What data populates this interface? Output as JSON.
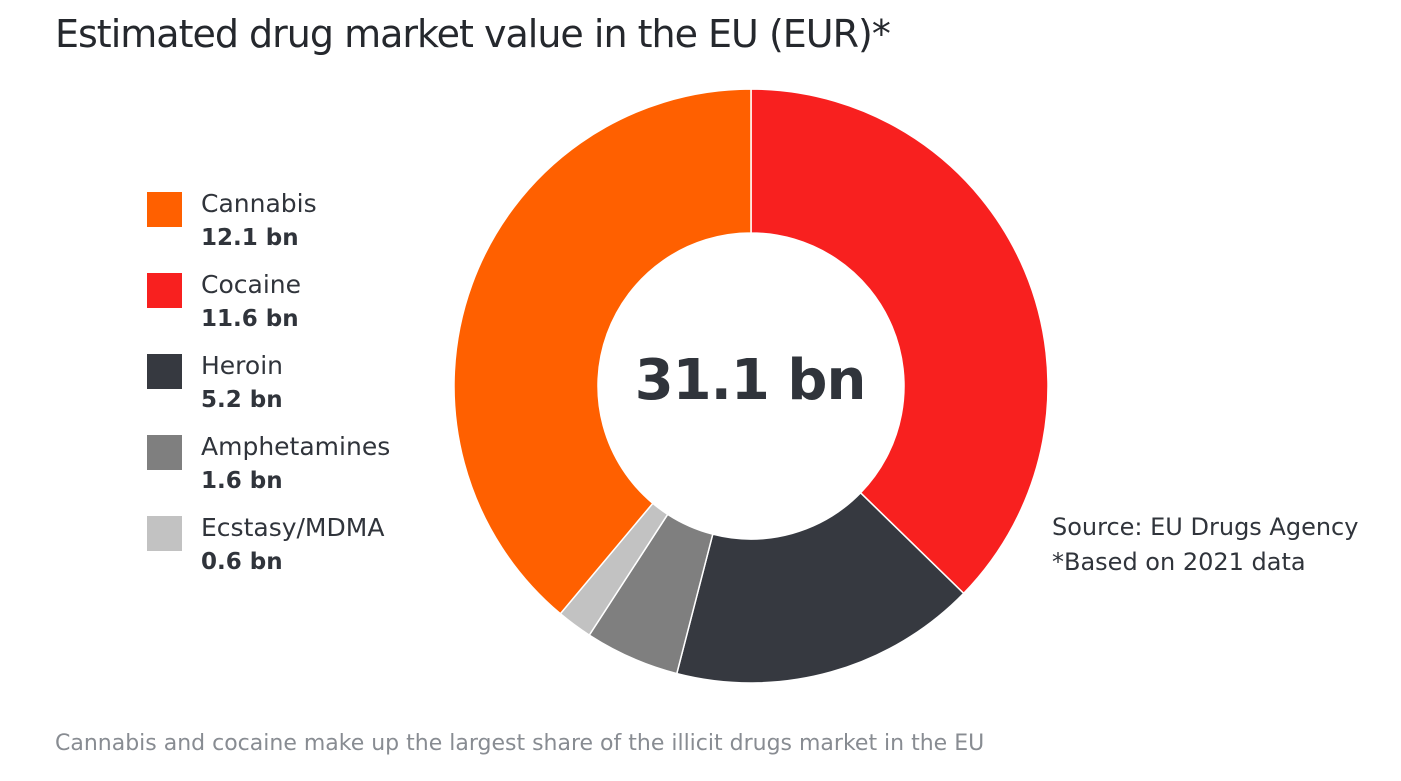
{
  "chart_data": {
    "type": "pie",
    "title": "Estimated drug market value in the EU (EUR)*",
    "center_label": "31.1 bn",
    "unit": "bn",
    "categories": [
      "Cannabis",
      "Cocaine",
      "Heroin",
      "Amphetamines",
      "Ecstasy/MDMA"
    ],
    "values": [
      12.1,
      11.6,
      5.2,
      1.6,
      0.6
    ],
    "value_labels": [
      "12.1 bn",
      "11.6 bn",
      "5.2 bn",
      "1.6 bn",
      "0.6 bn"
    ],
    "colors": [
      "#ff6000",
      "#f8201f",
      "#363940",
      "#7f7f7f",
      "#c2c2c2"
    ],
    "donut": true,
    "legend_position": "left"
  },
  "source": {
    "line1": "Source: EU Drugs Agency",
    "line2": "*Based on 2021 data"
  },
  "caption": "Cannabis and cocaine make up the largest share of the illicit drugs market in the EU"
}
